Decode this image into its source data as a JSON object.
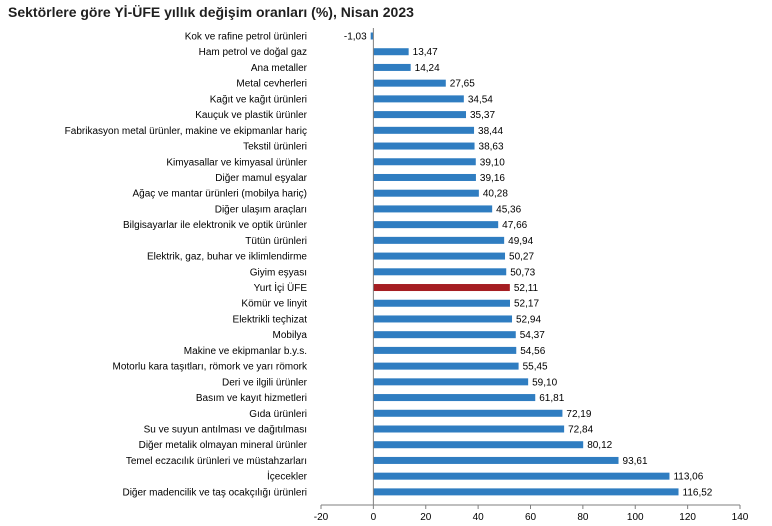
{
  "chart_data": {
    "type": "bar",
    "orientation": "horizontal",
    "title": "Sektörlere göre Yİ-ÜFE yıllık değişim oranları (%), Nisan 2023",
    "categories": [
      "Kok ve rafine petrol ürünleri",
      "Ham petrol ve doğal gaz",
      "Ana metaller",
      "Metal cevherleri",
      "Kağıt ve kağıt ürünleri",
      "Kauçuk ve plastik ürünler",
      "Fabrikasyon metal ürünler, makine ve ekipmanlar hariç",
      "Tekstil ürünleri",
      "Kimyasallar ve kimyasal ürünler",
      "Diğer mamul eşyalar",
      "Ağaç ve mantar ürünleri (mobilya hariç)",
      "Diğer ulaşım araçları",
      "Bilgisayarlar ile elektronik ve optik ürünler",
      "Tütün ürünleri",
      "Elektrik, gaz, buhar ve iklimlendirme",
      "Giyim eşyası",
      "Yurt İçi ÜFE",
      "Kömür ve linyit",
      "Elektrikli teçhizat",
      "Mobilya",
      "Makine ve ekipmanlar b.y.s.",
      "Motorlu kara taşıtları, römork ve yarı römork",
      "Deri ve ilgili ürünler",
      "Basım ve kayıt hizmetleri",
      "Gıda ürünleri",
      "Su ve suyun antılması ve dağıtılması",
      "Diğer metalik olmayan mineral ürünler",
      "Temel eczacılık ürünleri ve müstahzarları",
      "İçecekler",
      "Diğer madencilik ve taş ocakçılığı ürünleri"
    ],
    "values": [
      -1.03,
      13.47,
      14.24,
      27.65,
      34.54,
      35.37,
      38.44,
      38.63,
      39.1,
      39.16,
      40.28,
      45.36,
      47.66,
      49.94,
      50.27,
      50.73,
      52.11,
      52.17,
      52.94,
      54.37,
      54.56,
      55.45,
      59.1,
      61.81,
      72.19,
      72.84,
      80.12,
      93.61,
      113.06,
      116.52
    ],
    "value_labels": [
      "-1,03",
      "13,47",
      "14,24",
      "27,65",
      "34,54",
      "35,37",
      "38,44",
      "38,63",
      "39,10",
      "39,16",
      "40,28",
      "45,36",
      "47,66",
      "49,94",
      "50,27",
      "50,73",
      "52,11",
      "52,17",
      "52,94",
      "54,37",
      "54,56",
      "55,45",
      "59,10",
      "61,81",
      "72,19",
      "72,84",
      "80,12",
      "93,61",
      "113,06",
      "116,52"
    ],
    "highlight_category": "Yurt İçi ÜFE",
    "xlim": [
      -20,
      140
    ],
    "x_ticks": [
      -20,
      0,
      20,
      40,
      60,
      80,
      100,
      120,
      140
    ],
    "colors": {
      "bar": "#2f7dc1",
      "highlight": "#a51e22",
      "axis": "#000000"
    },
    "grid": false,
    "legend": "none"
  }
}
